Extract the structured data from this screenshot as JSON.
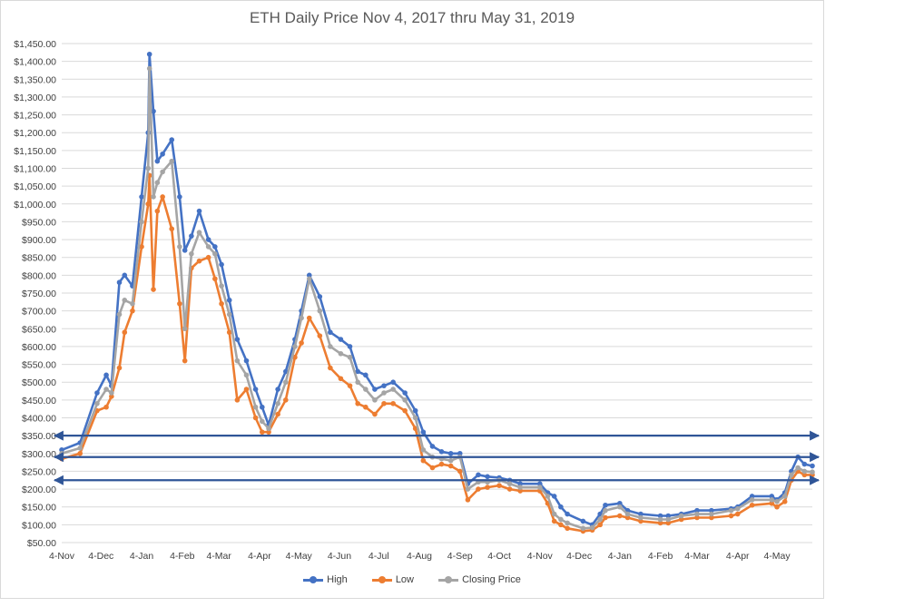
{
  "chart_data": {
    "type": "line",
    "title": "ETH Daily Price Nov 4, 2017 thru May 31, 2019",
    "xlabel": "",
    "ylabel": "",
    "x_range": [
      "2017-11-04",
      "2019-05-31"
    ],
    "x_tick_labels": [
      "4-Nov",
      "4-Dec",
      "4-Jan",
      "4-Feb",
      "4-Mar",
      "4-Apr",
      "4-May",
      "4-Jun",
      "4-Jul",
      "4-Aug",
      "4-Sep",
      "4-Oct",
      "4-Nov",
      "4-Dec",
      "4-Jan",
      "4-Feb",
      "4-Mar",
      "4-Apr",
      "4-May"
    ],
    "x_tick_dates": [
      "2017-11-04",
      "2017-12-04",
      "2018-01-04",
      "2018-02-04",
      "2018-03-04",
      "2018-04-04",
      "2018-05-04",
      "2018-06-04",
      "2018-07-04",
      "2018-08-04",
      "2018-09-04",
      "2018-10-04",
      "2018-11-04",
      "2018-12-04",
      "2019-01-04",
      "2019-02-04",
      "2019-03-04",
      "2019-04-04",
      "2019-05-04"
    ],
    "y_tick_labels": [
      "$50.00",
      "$100.00",
      "$150.00",
      "$200.00",
      "$250.00",
      "$300.00",
      "$350.00",
      "$400.00",
      "$450.00",
      "$500.00",
      "$550.00",
      "$600.00",
      "$650.00",
      "$700.00",
      "$750.00",
      "$800.00",
      "$850.00",
      "$900.00",
      "$950.00",
      "$1,000.00",
      "$1,050.00",
      "$1,100.00",
      "$1,150.00",
      "$1,200.00",
      "$1,250.00",
      "$1,300.00",
      "$1,350.00",
      "$1,400.00",
      "$1,450.00"
    ],
    "ylim": [
      50,
      1450
    ],
    "grid": "horizontal",
    "legend": "bottom",
    "colors": {
      "High": "#4472c4",
      "Low": "#ed7d31",
      "Closing Price": "#a5a5a5",
      "annotation": "#2f5597"
    },
    "x": [
      "2017-11-04",
      "2017-11-18",
      "2017-12-01",
      "2017-12-08",
      "2017-12-12",
      "2017-12-18",
      "2017-12-22",
      "2017-12-28",
      "2018-01-04",
      "2018-01-09",
      "2018-01-10",
      "2018-01-13",
      "2018-01-16",
      "2018-01-20",
      "2018-01-27",
      "2018-02-02",
      "2018-02-06",
      "2018-02-11",
      "2018-02-17",
      "2018-02-24",
      "2018-03-01",
      "2018-03-06",
      "2018-03-12",
      "2018-03-18",
      "2018-03-25",
      "2018-04-01",
      "2018-04-06",
      "2018-04-11",
      "2018-04-18",
      "2018-04-24",
      "2018-05-01",
      "2018-05-06",
      "2018-05-12",
      "2018-05-20",
      "2018-05-28",
      "2018-06-05",
      "2018-06-12",
      "2018-06-18",
      "2018-06-24",
      "2018-07-01",
      "2018-07-08",
      "2018-07-15",
      "2018-07-24",
      "2018-08-01",
      "2018-08-07",
      "2018-08-14",
      "2018-08-21",
      "2018-08-28",
      "2018-09-04",
      "2018-09-10",
      "2018-09-18",
      "2018-09-25",
      "2018-10-04",
      "2018-10-12",
      "2018-10-20",
      "2018-11-04",
      "2018-11-10",
      "2018-11-15",
      "2018-11-20",
      "2018-11-25",
      "2018-12-07",
      "2018-12-14",
      "2018-12-20",
      "2018-12-24",
      "2019-01-04",
      "2019-01-10",
      "2019-01-20",
      "2019-02-04",
      "2019-02-10",
      "2019-02-20",
      "2019-03-04",
      "2019-03-15",
      "2019-03-30",
      "2019-04-04",
      "2019-04-15",
      "2019-04-30",
      "2019-05-04",
      "2019-05-10",
      "2019-05-15",
      "2019-05-20",
      "2019-05-25",
      "2019-05-31"
    ],
    "series": [
      {
        "name": "High",
        "values": [
          310,
          330,
          470,
          520,
          490,
          780,
          800,
          770,
          1020,
          1200,
          1420,
          1260,
          1120,
          1140,
          1180,
          1020,
          870,
          910,
          980,
          900,
          880,
          830,
          730,
          620,
          560,
          480,
          430,
          380,
          480,
          530,
          620,
          700,
          800,
          740,
          640,
          620,
          600,
          530,
          520,
          480,
          490,
          500,
          470,
          420,
          360,
          320,
          305,
          300,
          300,
          215,
          240,
          235,
          232,
          225,
          215,
          215,
          190,
          180,
          150,
          130,
          110,
          100,
          130,
          155,
          160,
          140,
          130,
          125,
          125,
          130,
          140,
          140,
          145,
          150,
          180,
          180,
          170,
          190,
          250,
          290,
          270,
          265
        ]
      },
      {
        "name": "Low",
        "values": [
          285,
          300,
          420,
          430,
          460,
          540,
          640,
          700,
          880,
          1000,
          1080,
          760,
          980,
          1020,
          930,
          720,
          560,
          820,
          840,
          850,
          790,
          720,
          640,
          450,
          480,
          400,
          360,
          360,
          410,
          450,
          570,
          610,
          680,
          630,
          540,
          510,
          490,
          440,
          430,
          410,
          440,
          440,
          420,
          370,
          280,
          260,
          270,
          265,
          250,
          170,
          200,
          205,
          210,
          200,
          195,
          195,
          160,
          110,
          100,
          90,
          82,
          85,
          100,
          120,
          125,
          120,
          110,
          105,
          105,
          115,
          120,
          120,
          125,
          130,
          155,
          160,
          150,
          165,
          225,
          250,
          240,
          240
        ]
      },
      {
        "name": "Closing Price",
        "values": [
          300,
          315,
          440,
          480,
          470,
          690,
          730,
          720,
          950,
          1100,
          1380,
          1020,
          1060,
          1090,
          1120,
          880,
          650,
          860,
          920,
          880,
          860,
          770,
          690,
          560,
          520,
          430,
          390,
          370,
          440,
          500,
          600,
          680,
          790,
          700,
          600,
          580,
          570,
          500,
          480,
          450,
          470,
          480,
          450,
          400,
          310,
          290,
          285,
          280,
          290,
          200,
          220,
          220,
          225,
          215,
          205,
          205,
          180,
          130,
          115,
          105,
          90,
          92,
          115,
          140,
          150,
          130,
          120,
          115,
          115,
          125,
          130,
          130,
          140,
          145,
          170,
          170,
          165,
          180,
          240,
          260,
          250,
          248
        ]
      }
    ],
    "reference_lines": [
      350,
      290,
      225
    ]
  }
}
